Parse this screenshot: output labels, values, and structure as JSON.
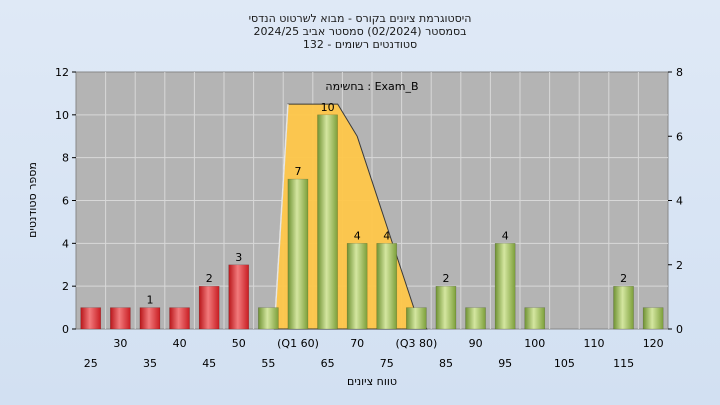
{
  "chart_data": {
    "type": "bar",
    "title_lines": [
      "היסטוגרמת ציונים בקורס - מבוא לשרטוט הנדסי",
      "בסמסטר  (02/2024)  סמסטר אביב 2024/25",
      "סטודנטים רשומים - 132"
    ],
    "annotation": "בחשימה : Exam_B",
    "xlabel": "טווח ציונים",
    "ylabel": "מספר סטודנטים",
    "ylim": [
      0,
      12
    ],
    "y_ticks": [
      "0",
      "2",
      "4",
      "6",
      "8",
      "10",
      "12"
    ],
    "y2lim": [
      0,
      8
    ],
    "y2_ticks": [
      "0",
      "2",
      "4",
      "6",
      "8"
    ],
    "grid": true,
    "categories": [
      "25",
      "30",
      "35",
      "40",
      "45",
      "50",
      "55",
      "(Q1 60)",
      "65",
      "70",
      "75",
      "(Q3 80)",
      "85",
      "90",
      "95",
      "100",
      "105",
      "110",
      "115",
      "120"
    ],
    "values": [
      1,
      1,
      1,
      1,
      2,
      3,
      1,
      7,
      10,
      4,
      4,
      1,
      2,
      1,
      4,
      1,
      0,
      0,
      2,
      1
    ],
    "data_labels": [
      "",
      "",
      "1",
      "",
      "2",
      "3",
      "",
      "7",
      "10",
      "4",
      "4",
      "",
      "2",
      "",
      "4",
      "",
      "",
      "",
      "2",
      ""
    ],
    "bar_colors": [
      "red",
      "red",
      "red",
      "red",
      "red",
      "red",
      "green",
      "green",
      "green",
      "green",
      "green",
      "green",
      "green",
      "green",
      "green",
      "green",
      "green",
      "green",
      "green",
      "green"
    ],
    "colors": {
      "red_bar": "#e8262b",
      "red_bar_light": "#f08a8c",
      "green_bar": "#8fb24a",
      "green_bar_light": "#cfe39a",
      "area_fill": "#ffc84a",
      "plot_bg": "#b4b4b4"
    }
  }
}
